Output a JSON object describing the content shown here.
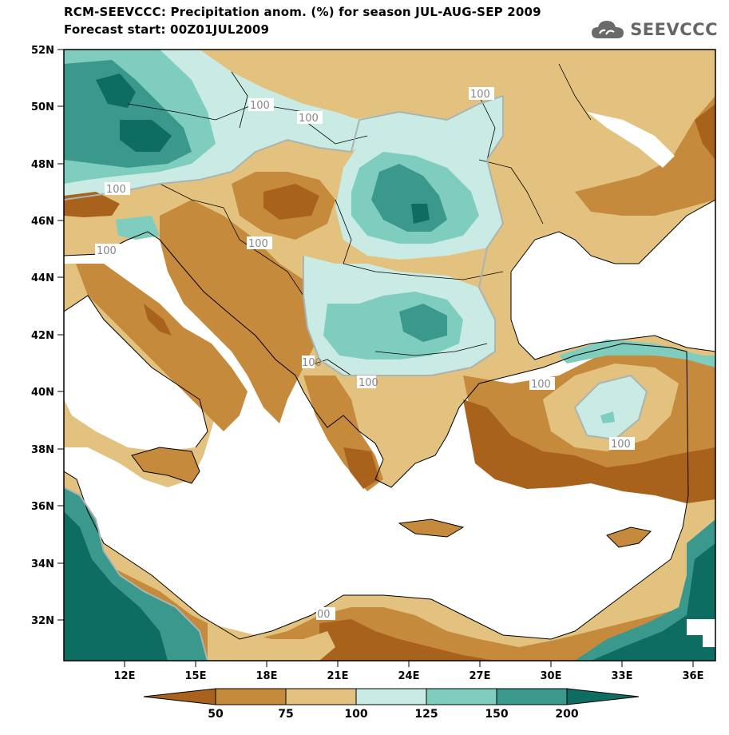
{
  "title_line1": "RCM-SEEVCCC: Precipitation anom. (%) for season JUL-AUG-SEP 2009",
  "title_line2": "Forecast start: 00Z01JUL2009",
  "logo_text": "SEEVCCC",
  "logo_icon": "cloud-icon",
  "lat_ticks": [
    "52N",
    "50N",
    "48N",
    "46N",
    "44N",
    "42N",
    "40N",
    "38N",
    "36N",
    "34N",
    "32N"
  ],
  "lon_ticks": [
    "12E",
    "15E",
    "18E",
    "21E",
    "24E",
    "27E",
    "30E",
    "33E",
    "36E"
  ],
  "contour_labels": [
    "100",
    "100",
    "100",
    "100",
    "100",
    "100",
    "100",
    "100",
    "100",
    "100",
    "00"
  ],
  "colorbar": {
    "levels": [
      "50",
      "75",
      "100",
      "125",
      "150",
      "200"
    ],
    "colors": [
      "#a8621c",
      "#c58a3c",
      "#e2c27e",
      "#c9ebe4",
      "#7fcdbf",
      "#3a998c",
      "#0e6d62"
    ]
  },
  "colors": {
    "dry_strong": "#a8621c",
    "dry": "#c58a3c",
    "dry_light": "#e2c27e",
    "wet_light": "#c9ebe4",
    "wet": "#7fcdbf",
    "wet_strong": "#3a998c",
    "wet_very": "#0e6d62",
    "sea": "#ffffff",
    "contour": "#a9b4b5"
  }
}
